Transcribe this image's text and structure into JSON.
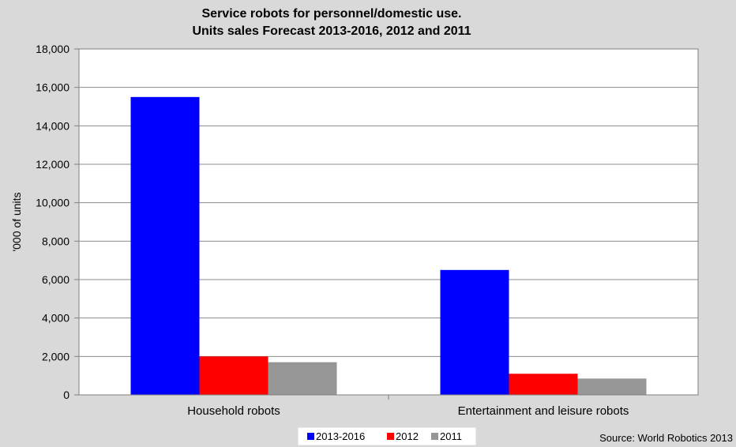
{
  "chart_data": {
    "type": "bar",
    "title": [
      "Service robots for personnel/domestic use.",
      "Units sales Forecast 2013-2016, 2012 and 2011"
    ],
    "ylabel": "'000 of units",
    "xlabel": "",
    "categories": [
      "Household robots",
      "Entertainment and leisure robots"
    ],
    "series": [
      {
        "name": "2013-2016",
        "color": "#0000ff",
        "values": [
          15500,
          6500
        ]
      },
      {
        "name": "2012",
        "color": "#ff0000",
        "values": [
          2000,
          1100
        ]
      },
      {
        "name": "2011",
        "color": "#969696",
        "values": [
          1700,
          850
        ]
      }
    ],
    "ylim": [
      0,
      18000
    ],
    "yticks": [
      0,
      2000,
      4000,
      6000,
      8000,
      10000,
      12000,
      14000,
      16000,
      18000
    ],
    "ytick_labels": [
      "0",
      "2,000",
      "4,000",
      "6,000",
      "8,000",
      "10,000",
      "12,000",
      "14,000",
      "16,000",
      "18,000"
    ],
    "grid": true,
    "legend_position": "bottom-center",
    "source": "Source: World Robotics 2013"
  }
}
